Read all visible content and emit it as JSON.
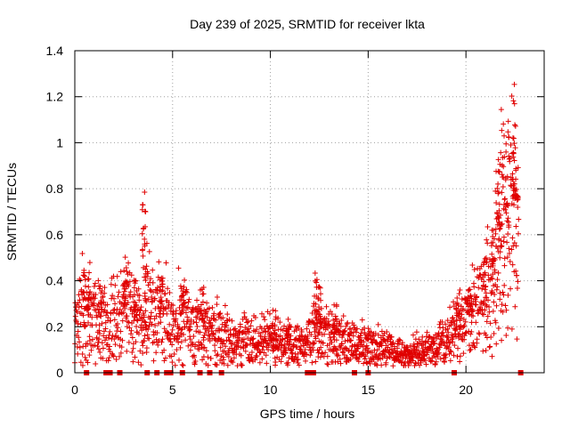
{
  "chart_data": {
    "type": "scatter",
    "title": "Day 239 of 2025, SRMTID for receiver lkta",
    "xlabel": "GPS time / hours",
    "ylabel": "SRMTID / TECUs",
    "xlim": [
      0,
      24
    ],
    "ylim": [
      0,
      1.4
    ],
    "xticks": [
      0,
      5,
      10,
      15,
      20
    ],
    "yticks": [
      0,
      0.2,
      0.4,
      0.6,
      0.8,
      1,
      1.2,
      1.4
    ],
    "ytick_labels": [
      "0",
      "0.2",
      "0.4",
      "0.6",
      "0.8",
      "1",
      "1.2",
      "1.4"
    ],
    "grid": true,
    "marker": "+",
    "color": "#e00000",
    "series": [
      {
        "name": "SRMTID",
        "profile": [
          [
            0.0,
            0.19
          ],
          [
            0.4,
            0.27
          ],
          [
            0.8,
            0.23
          ],
          [
            1.2,
            0.26
          ],
          [
            1.6,
            0.19
          ],
          [
            2.0,
            0.22
          ],
          [
            2.5,
            0.28
          ],
          [
            3.0,
            0.24
          ],
          [
            3.5,
            0.2
          ],
          [
            3.8,
            0.28
          ],
          [
            4.2,
            0.28
          ],
          [
            4.6,
            0.26
          ],
          [
            5.0,
            0.21
          ],
          [
            5.5,
            0.25
          ],
          [
            6.0,
            0.2
          ],
          [
            6.5,
            0.19
          ],
          [
            7.0,
            0.18
          ],
          [
            7.5,
            0.16
          ],
          [
            8.0,
            0.14
          ],
          [
            9.0,
            0.14
          ],
          [
            10.0,
            0.14
          ],
          [
            11.0,
            0.12
          ],
          [
            11.8,
            0.12
          ],
          [
            12.2,
            0.18
          ],
          [
            12.6,
            0.17
          ],
          [
            13.0,
            0.15
          ],
          [
            14.0,
            0.12
          ],
          [
            15.0,
            0.12
          ],
          [
            16.0,
            0.1
          ],
          [
            17.0,
            0.08
          ],
          [
            17.5,
            0.09
          ],
          [
            18.0,
            0.1
          ],
          [
            18.5,
            0.11
          ],
          [
            19.0,
            0.13
          ],
          [
            19.5,
            0.19
          ],
          [
            20.0,
            0.22
          ],
          [
            20.5,
            0.26
          ],
          [
            21.0,
            0.32
          ],
          [
            21.5,
            0.42
          ],
          [
            22.0,
            0.55
          ],
          [
            22.4,
            0.72
          ],
          [
            22.7,
            0.8
          ]
        ],
        "bursts": [
          [
            0.5,
            0.45
          ],
          [
            0.7,
            0.5
          ],
          [
            1.3,
            0.38
          ],
          [
            2.6,
            0.5
          ],
          [
            3.1,
            0.42
          ],
          [
            3.55,
            0.79
          ],
          [
            3.65,
            0.72
          ],
          [
            4.4,
            0.44
          ],
          [
            5.5,
            0.38
          ],
          [
            6.6,
            0.38
          ],
          [
            10.2,
            0.3
          ],
          [
            10.9,
            0.25
          ],
          [
            12.3,
            0.44
          ],
          [
            12.5,
            0.38
          ],
          [
            13.3,
            0.3
          ],
          [
            19.6,
            0.3
          ],
          [
            20.2,
            0.34
          ],
          [
            21.0,
            0.5
          ],
          [
            21.4,
            0.62
          ],
          [
            21.6,
            0.88
          ],
          [
            21.7,
            1.0
          ],
          [
            21.9,
            1.18
          ],
          [
            22.1,
            1.15
          ],
          [
            22.4,
            1.22
          ],
          [
            22.5,
            0.95
          ],
          [
            22.6,
            0.75
          ]
        ],
        "floor_points_x": [
          0.6,
          1.6,
          1.8,
          2.3,
          3.7,
          4.2,
          4.7,
          4.9,
          5.5,
          6.4,
          6.9,
          7.5,
          11.9,
          12.0,
          12.2,
          14.3,
          15.0,
          19.4,
          22.8
        ]
      }
    ]
  }
}
